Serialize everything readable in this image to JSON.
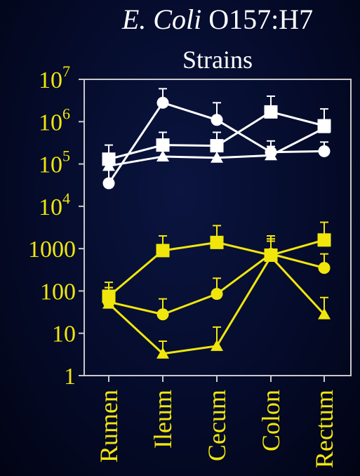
{
  "title": {
    "italic": "E. Coli",
    "rest": " O157:H7",
    "line2": "Strains"
  },
  "colors": {
    "white": "#ffffff",
    "yellow": "#f1e60c",
    "frame": "#c9c9c9",
    "background": "#050b2a"
  },
  "chart_data": {
    "type": "line",
    "title": "E. Coli O157:H7 Strains",
    "categories": [
      "Rumen",
      "Ileum",
      "Cecum",
      "Colon",
      "Rectum"
    ],
    "y_scale": "log",
    "ylim": [
      1,
      10000000
    ],
    "y_ticks": [
      {
        "value": 1,
        "label": "1"
      },
      {
        "value": 10,
        "label": "10"
      },
      {
        "value": 100,
        "label": "100"
      },
      {
        "value": 1000,
        "label": "1000"
      },
      {
        "value": 10000,
        "label": "10",
        "exp": "4"
      },
      {
        "value": 100000,
        "label": "10",
        "exp": "5"
      },
      {
        "value": 1000000,
        "label": "10",
        "exp": "6"
      },
      {
        "value": 10000000,
        "label": "10",
        "exp": "7"
      }
    ],
    "grid": false,
    "legend": "none",
    "series": [
      {
        "color": "#ffffff",
        "marker": "circle",
        "values": [
          35000,
          2800000,
          1100000,
          190000,
          200000
        ],
        "err_upper": [
          120000,
          6000000,
          2800000,
          350000,
          330000
        ]
      },
      {
        "color": "#ffffff",
        "marker": "square",
        "values": [
          130000,
          280000,
          270000,
          1700000,
          800000
        ],
        "err_upper": [
          280000,
          560000,
          560000,
          4000000,
          2000000
        ]
      },
      {
        "color": "#ffffff",
        "marker": "triangle",
        "values": [
          90000,
          150000,
          140000,
          160000,
          700000
        ],
        "err_upper": [
          170000,
          250000,
          230000,
          260000,
          1100000
        ]
      },
      {
        "color": "#f1e60c",
        "marker": "square",
        "values": [
          75,
          900,
          1400,
          700,
          1600
        ],
        "err_upper": [
          160,
          2000,
          3500,
          1700,
          4200
        ]
      },
      {
        "color": "#f1e60c",
        "marker": "circle",
        "values": [
          55,
          28,
          85,
          750,
          350
        ],
        "err_upper": [
          120,
          65,
          200,
          2000,
          750
        ]
      },
      {
        "color": "#f1e60c",
        "marker": "triangle",
        "values": [
          50,
          3.3,
          5,
          650,
          28
        ],
        "err_upper": [
          120,
          6.5,
          14,
          1500,
          70
        ]
      }
    ]
  }
}
